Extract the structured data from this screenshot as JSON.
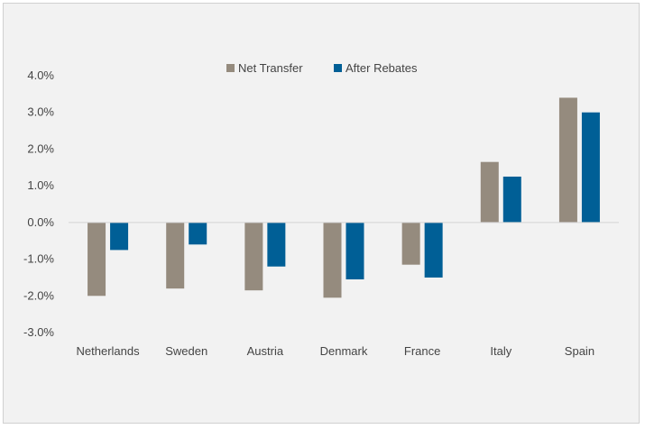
{
  "chart_data": {
    "type": "bar",
    "categories": [
      "Netherlands",
      "Sweden",
      "Austria",
      "Denmark",
      "France",
      "Italy",
      "Spain"
    ],
    "series": [
      {
        "name": "Net Transfer",
        "color": "#958b7e",
        "values": [
          -2.0,
          -1.8,
          -1.85,
          -2.05,
          -1.15,
          1.65,
          3.4
        ]
      },
      {
        "name": "After Rebates",
        "color": "#005f96",
        "values": [
          -0.75,
          -0.6,
          -1.2,
          -1.55,
          -1.5,
          1.25,
          3.0
        ]
      }
    ],
    "ylim": [
      -3.0,
      4.0
    ],
    "yticks": [
      "4.0%",
      "3.0%",
      "2.0%",
      "1.0%",
      "0.0%",
      "-1.0%",
      "-2.0%",
      "-3.0%"
    ],
    "ytick_values": [
      4,
      3,
      2,
      1,
      0,
      -1,
      -2,
      -3
    ],
    "grid": false,
    "legend_position": "top-center",
    "title": "",
    "xlabel": "",
    "ylabel": ""
  }
}
